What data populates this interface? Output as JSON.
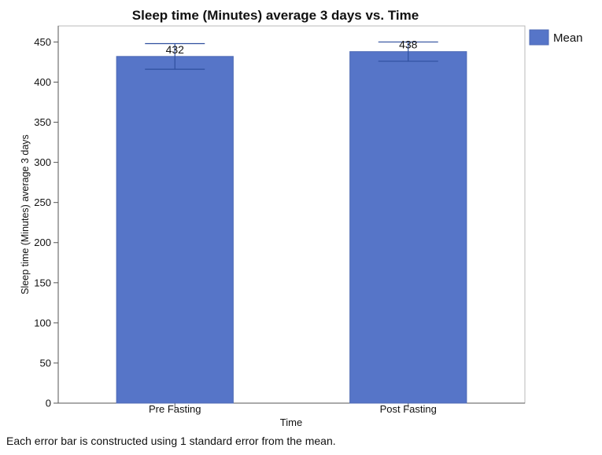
{
  "chart_data": {
    "type": "bar",
    "title": "Sleep time (Minutes) average 3 days vs. Time",
    "xlabel": "Time",
    "ylabel": "Sleep time (Minutes) average 3 days",
    "categories": [
      "Pre Fasting",
      "Post Fasting"
    ],
    "series": [
      {
        "name": "Mean",
        "values": [
          432,
          438
        ],
        "error_low": [
          416,
          426
        ],
        "error_high": [
          448,
          450
        ],
        "color": "#5675c8"
      }
    ],
    "data_labels": [
      "432",
      "438"
    ],
    "ylim": [
      0,
      470
    ],
    "yticks": [
      0,
      50,
      100,
      150,
      200,
      250,
      300,
      350,
      400,
      450
    ],
    "grid": false,
    "legend_position": "top-right",
    "footnote": "Each error bar is constructed using 1 standard error from the mean."
  }
}
